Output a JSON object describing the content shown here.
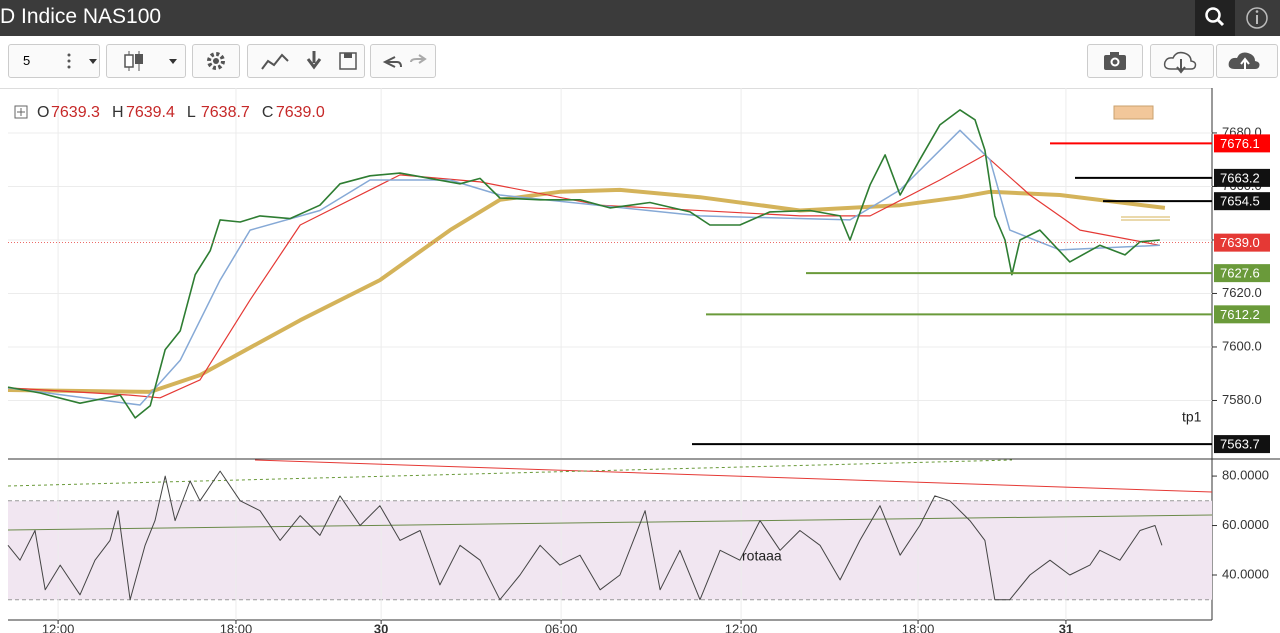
{
  "header": {
    "title": "D Indice NAS100"
  },
  "toolbar": {
    "interval": "5"
  },
  "chart_data": [
    {
      "type": "line",
      "ohlc": [
        {
          "key": "O",
          "value": "7639.3"
        },
        {
          "key": "H",
          "value": "7639.4"
        },
        {
          "key": "L",
          "value": "7638.7"
        },
        {
          "key": "C",
          "value": "7639.0"
        }
      ],
      "xlim": [
        -1.67,
        38.47
      ],
      "xticks": [
        {
          "value": 0,
          "label": "12:00"
        },
        {
          "value": 5.93,
          "label": "18:00"
        },
        {
          "value": 10.77,
          "label": "30"
        },
        {
          "value": 16.77,
          "label": "06:00"
        },
        {
          "value": 22.77,
          "label": "12:00"
        },
        {
          "value": 28.67,
          "label": "18:00"
        },
        {
          "value": 33.6,
          "label": "31"
        }
      ],
      "ylim": [
        7558.5,
        7696.8
      ],
      "yticks": [
        {
          "value": 7580,
          "label": "7580.0"
        },
        {
          "value": 7600,
          "label": "7600.0"
        },
        {
          "value": 7620,
          "label": "7620.0"
        },
        {
          "value": 7640,
          "label": "7640.0"
        },
        {
          "value": 7660,
          "label": "7660.0"
        },
        {
          "value": 7680,
          "label": "7680.0"
        }
      ],
      "grid": true,
      "series": [
        {
          "color": "#d4b35a",
          "width": 4,
          "x": [
            -1.67,
            3.07,
            4.73,
            8.07,
            10.73,
            13.07,
            14.73,
            16.73,
            18.73,
            21.4,
            24.73,
            28.07,
            30.07,
            31.07,
            33.4,
            36.9
          ],
          "values": [
            7583.9,
            7583.2,
            7589.5,
            7610,
            7625,
            7643.7,
            7655,
            7658,
            7658.7,
            7656,
            7651,
            7653,
            7656,
            7658,
            7656.8,
            7652
          ]
        },
        {
          "color": "#e53935",
          "width": 1.2,
          "x": [
            -1.67,
            2.4,
            3.4,
            4.73,
            6.4,
            8.07,
            11.4,
            14.07,
            18.07,
            24.73,
            27.07,
            29.4,
            30.9,
            32.4,
            34.07,
            36.73
          ],
          "values": [
            7584.7,
            7582,
            7581,
            7587.7,
            7617.6,
            7645.6,
            7664.3,
            7661.7,
            7653,
            7649,
            7649,
            7662.4,
            7671.8,
            7656.8,
            7643.7,
            7638
          ]
        },
        {
          "color": "#86a9d6",
          "width": 1.5,
          "x": [
            -1.67,
            2.73,
            4.07,
            5.4,
            6.4,
            8.73,
            10.4,
            13.07,
            14.73,
            21.4,
            26.4,
            28.07,
            30.07,
            31.07,
            31.73,
            33.4,
            36.73
          ],
          "values": [
            7584.7,
            7578.3,
            7595,
            7625,
            7643.7,
            7651,
            7662.4,
            7662.4,
            7656.8,
            7649,
            7647.5,
            7658.7,
            7681,
            7670,
            7643.7,
            7636.3,
            7638
          ]
        },
        {
          "color": "#2e7d32",
          "width": 1.6,
          "x": [
            -1.67,
            -0.6,
            0.73,
            2.07,
            2.57,
            3.07,
            3.57,
            4.07,
            4.57,
            5.07,
            5.4,
            6.07,
            6.73,
            7.73,
            8.73,
            9.4,
            10.4,
            11.4,
            12.4,
            13.4,
            14.07,
            14.73,
            16.07,
            17.4,
            18.4,
            19.73,
            21.07,
            21.73,
            22.73,
            23.73,
            25.07,
            26.07,
            26.4,
            27.07,
            27.57,
            28.07,
            28.73,
            29.4,
            30.07,
            30.57,
            30.9,
            31.23,
            31.57,
            31.8,
            32.07,
            32.73,
            33.73,
            34.73,
            35.57,
            36.07,
            36.73
          ],
          "values": [
            7585,
            7582.8,
            7579,
            7582,
            7573.5,
            7578,
            7599,
            7606,
            7627,
            7636,
            7647.5,
            7646.7,
            7649,
            7648,
            7653,
            7661,
            7664,
            7665,
            7663,
            7661,
            7663,
            7655.7,
            7655,
            7655,
            7652,
            7654,
            7650.5,
            7645.6,
            7645.6,
            7650.5,
            7651,
            7649,
            7640,
            7660.6,
            7671.8,
            7656.8,
            7670,
            7683,
            7688.6,
            7684.9,
            7673.6,
            7649,
            7640,
            7627,
            7640,
            7643.7,
            7631.8,
            7638,
            7634.4,
            7639.3,
            7640
          ]
        }
      ],
      "levels": [
        {
          "value": 7676.1,
          "color": "#ff0000"
        },
        {
          "value": 7663.2,
          "color": "#000000"
        },
        {
          "value": 7654.5,
          "color": "#000000"
        },
        {
          "value": {
            "value": 7639,
            "label": "7639.0"
          },
          "color": "#e53935"
        },
        {
          "value": 7627.6,
          "color": "#6a9a3a"
        },
        {
          "value": 7612.2,
          "color": "#6a9a3a"
        },
        {
          "value": 7563.7,
          "color": "#000000"
        }
      ],
      "annotation": "tp1"
    },
    {
      "type": "line",
      "xlim": [
        -1.67,
        38.47
      ],
      "ylim": [
        21.8,
        86.5
      ],
      "yticks": [
        {
          "value": 80,
          "label": "80.0000"
        },
        {
          "value": 60,
          "label": "60.0000"
        },
        {
          "value": 40,
          "label": "40.0000"
        }
      ],
      "band": [
        30,
        70
      ],
      "series": [
        {
          "color": "#444444",
          "width": 1,
          "x": [
            -1.67,
            -1.27,
            -0.77,
            -0.43,
            0.07,
            0.73,
            1.23,
            1.73,
            2,
            2.4,
            2.9,
            3.23,
            3.57,
            3.9,
            4.4,
            4.73,
            5.4,
            6.07,
            6.73,
            7.4,
            8.07,
            8.73,
            9.4,
            10.07,
            10.73,
            11.4,
            12.07,
            12.73,
            13.4,
            14.07,
            14.73,
            15.4,
            16.07,
            16.73,
            17.4,
            18.07,
            18.73,
            19.57,
            20.07,
            20.73,
            21.4,
            22.07,
            22.73,
            23.4,
            24.07,
            24.73,
            25.4,
            26.07,
            26.73,
            27.4,
            28.07,
            28.73,
            29.23,
            29.73,
            30.4,
            30.9,
            31.23,
            31.73,
            32.4,
            33.07,
            33.73,
            34.4,
            34.73,
            35.4,
            36.07,
            36.57,
            36.8
          ],
          "values": [
            52,
            46,
            58,
            34,
            44,
            32,
            46,
            54,
            66,
            30,
            52,
            62,
            80,
            62,
            78,
            70,
            82,
            70,
            66,
            54,
            64,
            56,
            72,
            60,
            68,
            54,
            58,
            36,
            52,
            46,
            30,
            40,
            52,
            44,
            48,
            34,
            40,
            66,
            34,
            50,
            30,
            50,
            46,
            62,
            50,
            58,
            52,
            38,
            54,
            68,
            48,
            60,
            72,
            70,
            62,
            54,
            30,
            30,
            40,
            46,
            40,
            44,
            50,
            46,
            58,
            60,
            52
          ]
        }
      ],
      "annotation": "rotaaa"
    }
  ]
}
